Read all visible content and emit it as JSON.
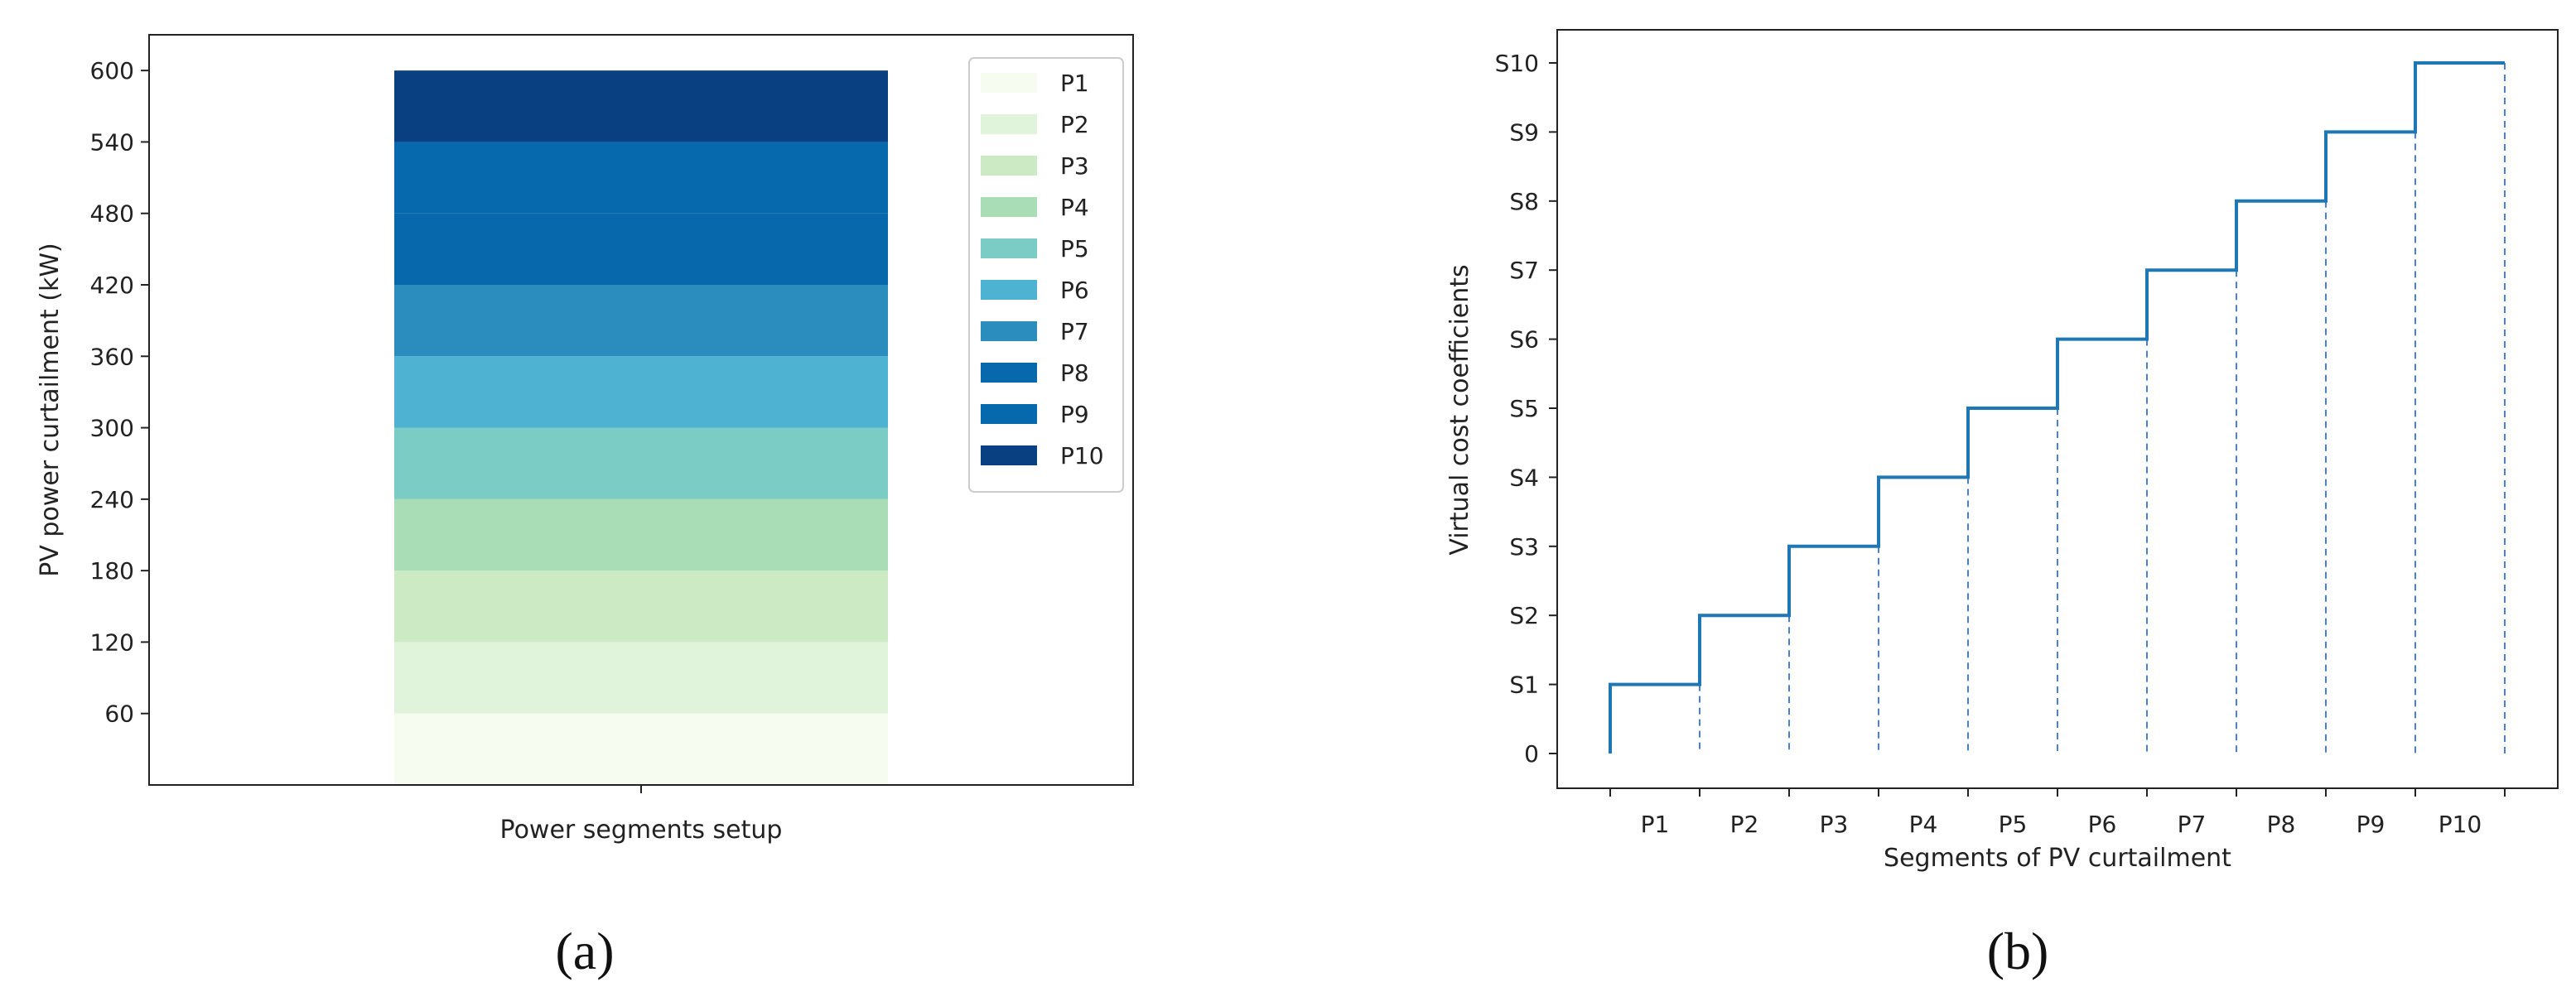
{
  "chart_data": [
    {
      "type": "bar",
      "stacked": true,
      "panel_label": "(a)",
      "xlabel": "Power segments setup",
      "ylabel": "PV power curtailment (kW)",
      "yticks": [
        60,
        120,
        180,
        240,
        300,
        360,
        420,
        480,
        540,
        600
      ],
      "ylim": [
        0,
        630
      ],
      "series": [
        {
          "name": "P1",
          "values": [
            60
          ],
          "color": "#f7fcf0"
        },
        {
          "name": "P2",
          "values": [
            60
          ],
          "color": "#e0f3db"
        },
        {
          "name": "P3",
          "values": [
            60
          ],
          "color": "#ccebc5"
        },
        {
          "name": "P4",
          "values": [
            60
          ],
          "color": "#a8ddb5"
        },
        {
          "name": "P5",
          "values": [
            60
          ],
          "color": "#7bccc4"
        },
        {
          "name": "P6",
          "values": [
            60
          ],
          "color": "#4eb3d3"
        },
        {
          "name": "P7",
          "values": [
            60
          ],
          "color": "#2b8cbe"
        },
        {
          "name": "P8",
          "values": [
            60
          ],
          "color": "#0868ac"
        },
        {
          "name": "P9",
          "values": [
            60
          ],
          "color": "#0668ad"
        },
        {
          "name": "P10",
          "values": [
            60
          ],
          "color": "#084081"
        }
      ],
      "legend_position": "top-right"
    },
    {
      "type": "line",
      "step": true,
      "panel_label": "(b)",
      "xlabel": "Segments of PV curtailment",
      "ylabel": "Virtual cost coefficients",
      "categories": [
        "P1",
        "P2",
        "P3",
        "P4",
        "P5",
        "P6",
        "P7",
        "P8",
        "P9",
        "P10"
      ],
      "yticklabels": [
        "0",
        "S1",
        "S2",
        "S3",
        "S4",
        "S5",
        "S6",
        "S7",
        "S8",
        "S9",
        "S10"
      ],
      "values": [
        1,
        2,
        3,
        4,
        5,
        6,
        7,
        8,
        9,
        10
      ],
      "line_color": "#1f77b4",
      "dashed_color": "#4a7fd8"
    }
  ]
}
